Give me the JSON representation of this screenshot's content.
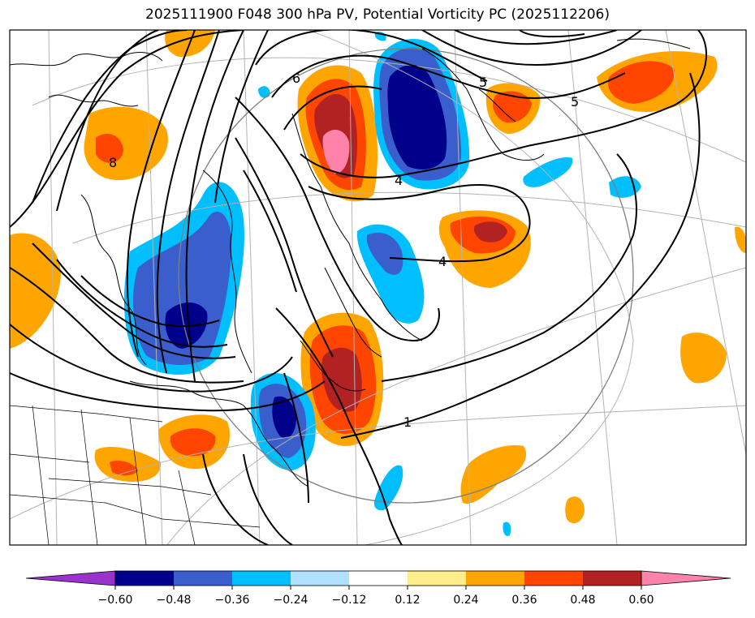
{
  "title": "2025111900 F048 300 hPa PV, Potential Vorticity PC (2025112206)",
  "colorbar": {
    "ticks": [
      "−0.60",
      "−0.48",
      "−0.36",
      "−0.24",
      "−0.12",
      "0.12",
      "0.24",
      "0.36",
      "0.48",
      "0.60"
    ],
    "colors": [
      "#9a32cd",
      "#00008b",
      "#3a5fcd",
      "#00bfff",
      "#b0e2ff",
      "#ffffff",
      "#ffec8b",
      "#ffa500",
      "#ff4500",
      "#b22222",
      "#ff82ab"
    ]
  },
  "contour_labels": [
    "6",
    "5",
    "5",
    "4",
    "4",
    "1",
    "8"
  ],
  "shading_colors": {
    "neg_strong": "#00008b",
    "neg_mid": "#3a5fcd",
    "neg_weak": "#00bfff",
    "pos_weak": "#ffa500",
    "pos_mid": "#ff4500",
    "pos_strong": "#b22222",
    "pos_max": "#ff82ab"
  }
}
